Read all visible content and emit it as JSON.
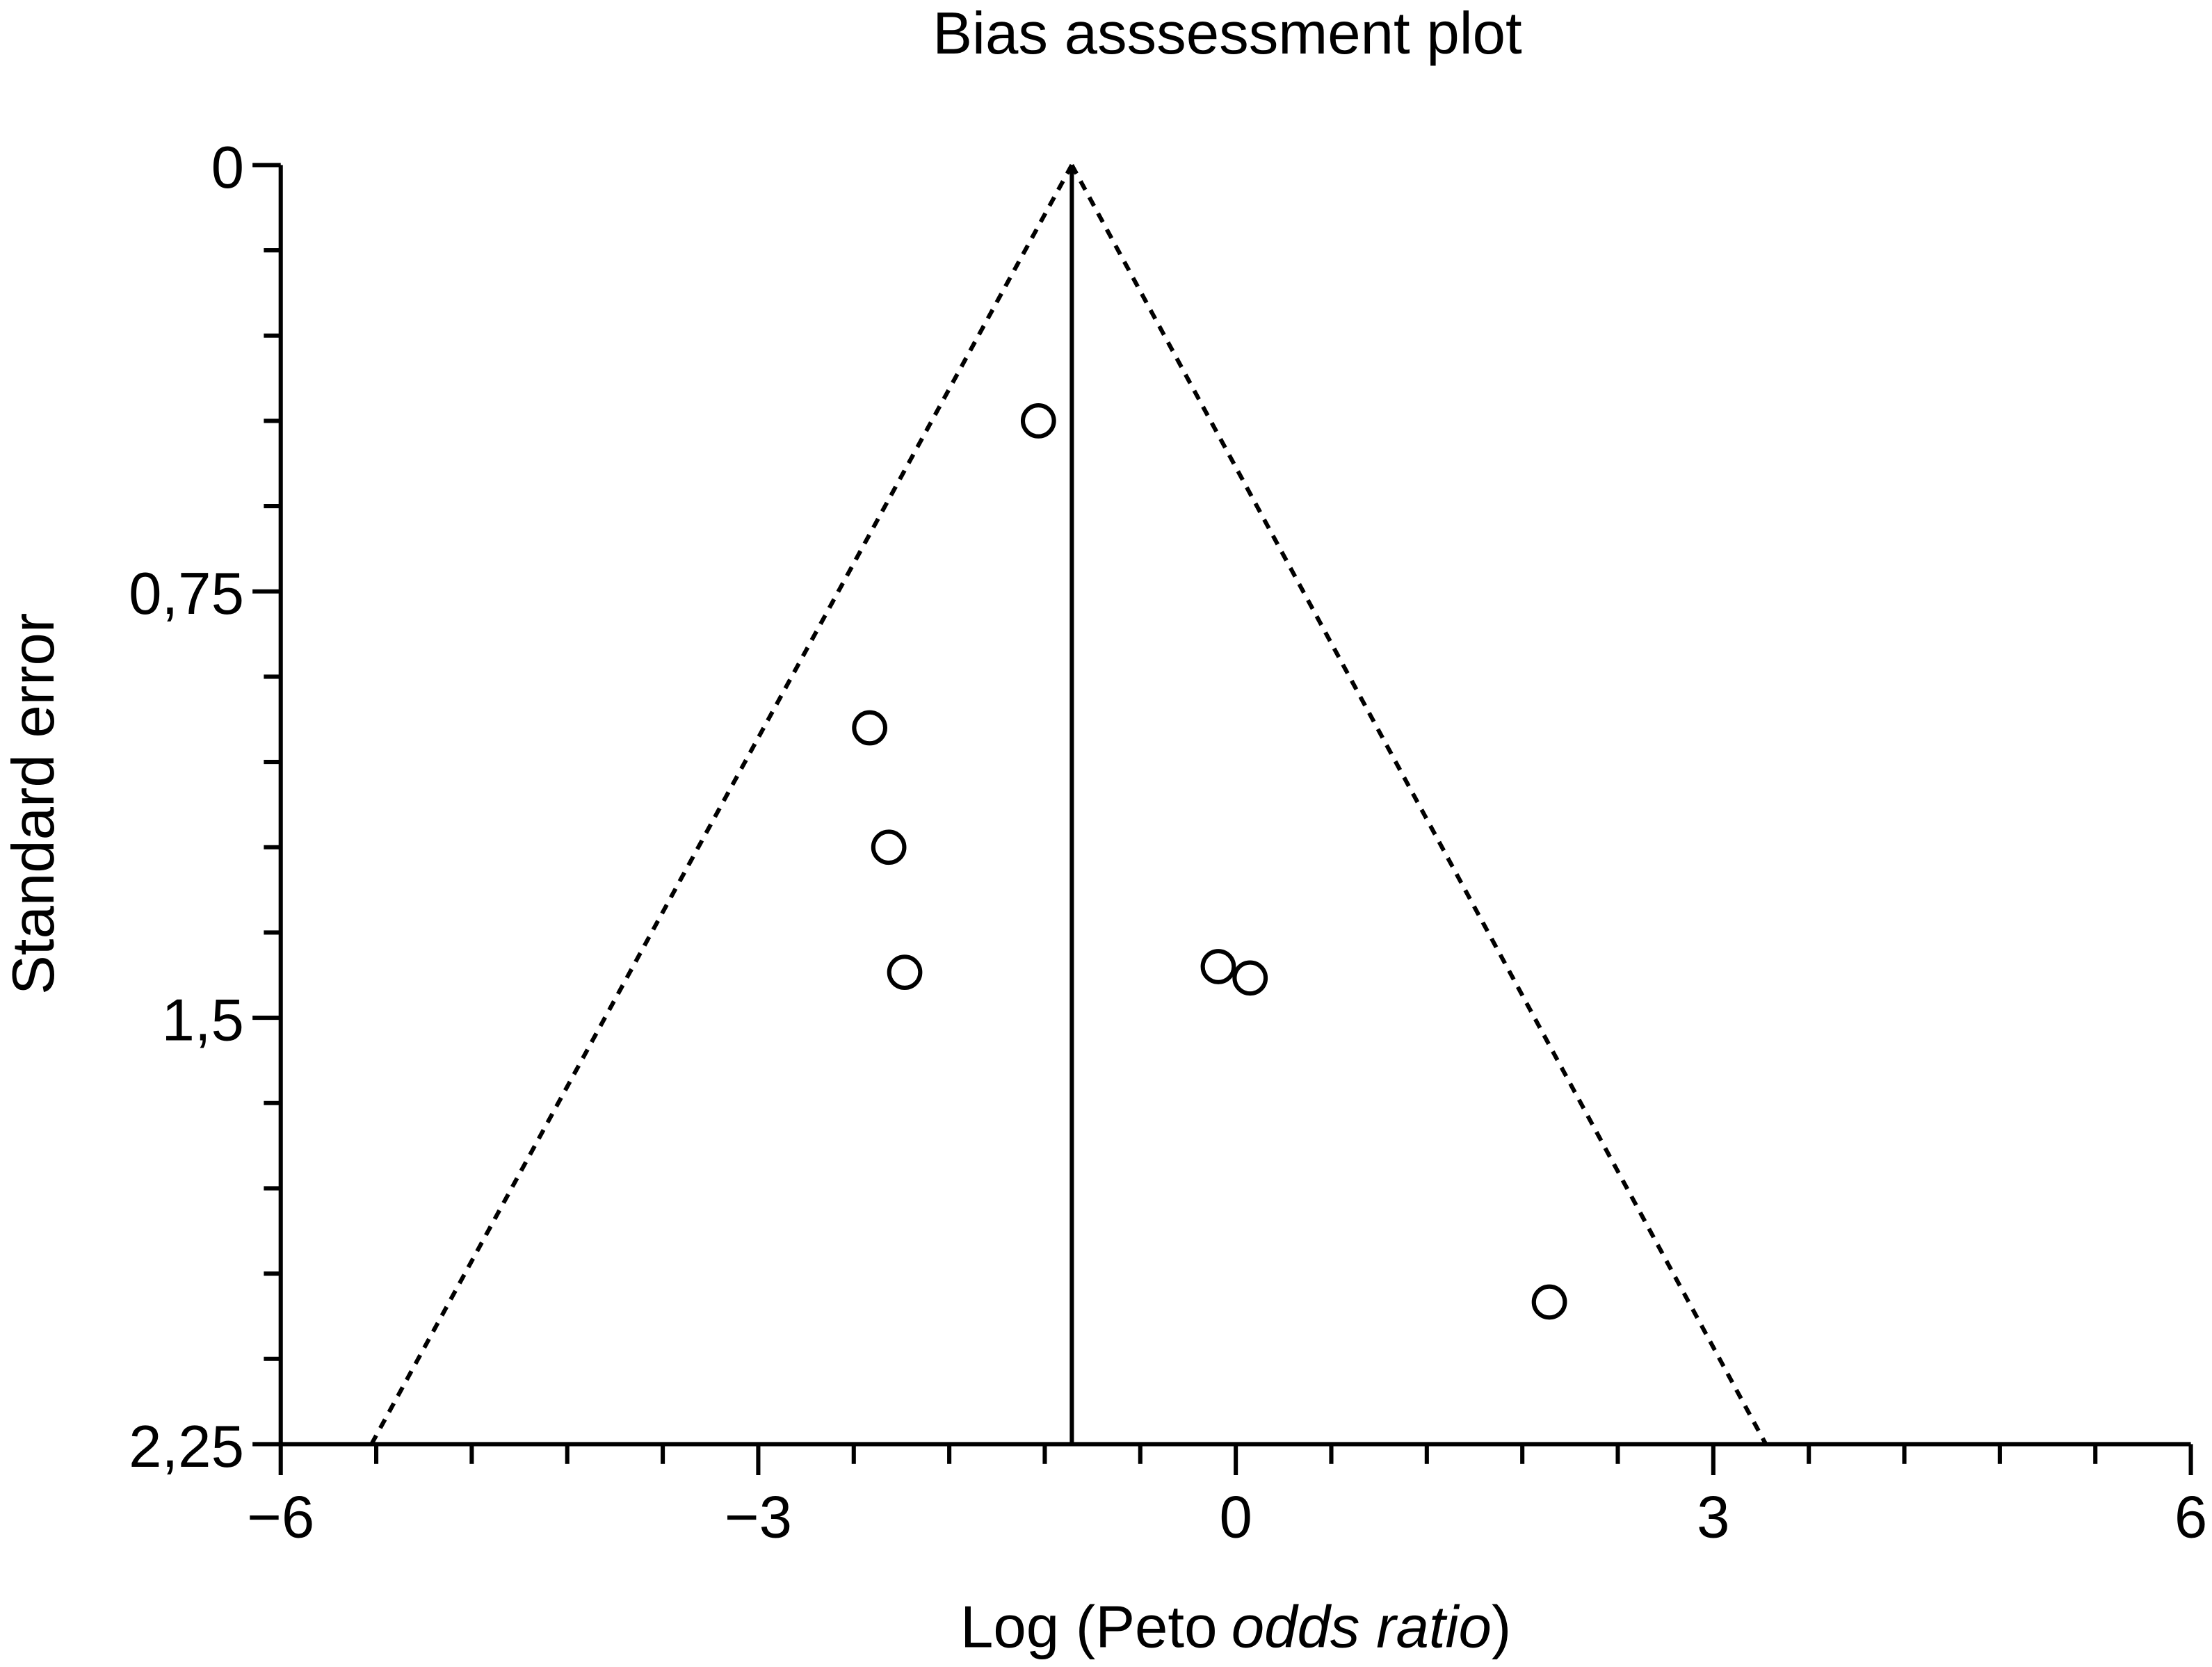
{
  "chart_data": {
    "type": "scatter",
    "title": "Bias asssessment plot",
    "x_label": [
      "Log (Peto",
      "odds ratio",
      ")"
    ],
    "y_label": "Standard error",
    "x": [
      -1.24,
      -2.3,
      -2.18,
      -2.08,
      -0.11,
      0.09,
      1.97
    ],
    "values": [
      0.45,
      0.99,
      1.2,
      1.42,
      1.41,
      1.43,
      2.0
    ],
    "color": "#000000",
    "xlim": [
      -6,
      6
    ],
    "ylim": [
      2.25,
      0
    ],
    "y_inverted": true,
    "xticks": [
      {
        "value": -6,
        "label": "−6"
      },
      {
        "value": -3,
        "label": "−3"
      },
      0,
      3,
      6
    ],
    "xminorticks": [
      -5.4,
      -4.8,
      -4.2,
      -3.6,
      -2.4,
      -1.8,
      -1.2,
      -0.6,
      0.6,
      1.2,
      1.8,
      2.4,
      3.6,
      4.2,
      4.8,
      5.4
    ],
    "yticks": [
      0,
      {
        "value": 0.75,
        "label": "0,75"
      },
      {
        "value": 1.5,
        "label": "1,5"
      },
      {
        "value": 2.25,
        "label": "2,25"
      }
    ],
    "yminorticks": [
      0.15,
      0.3,
      0.45,
      0.6,
      0.9,
      1.05,
      1.2,
      1.35,
      1.65,
      1.8,
      1.95,
      2.1
    ],
    "reference_line": {
      "x": [
        -1.03,
        -1.03
      ],
      "y": [
        0,
        2.25
      ]
    },
    "funnel_lines": [
      {
        "x": [
          -1.03,
          -5.43
        ],
        "y": [
          0,
          2.25
        ]
      },
      {
        "x": [
          -1.03,
          3.33
        ],
        "y": [
          0,
          2.25
        ]
      }
    ]
  }
}
